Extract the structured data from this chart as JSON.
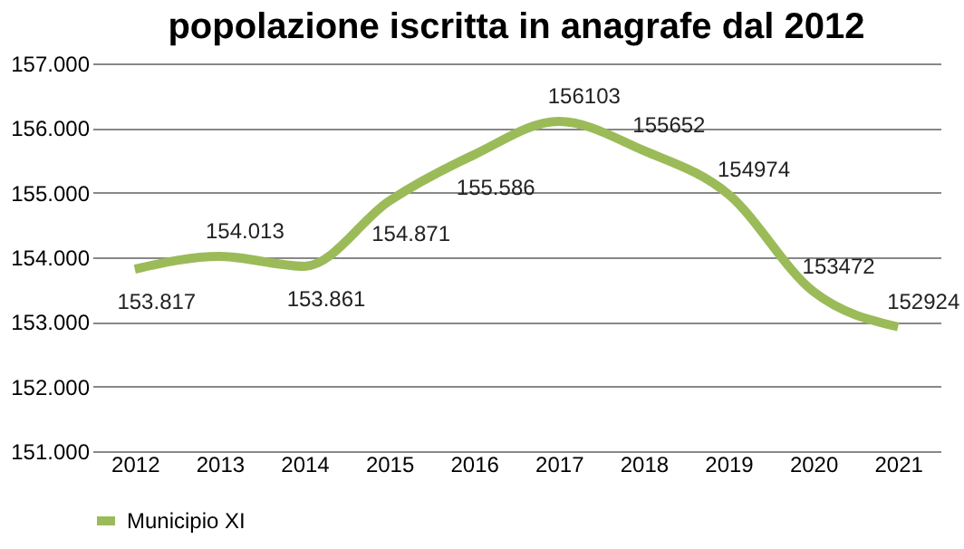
{
  "chart_data": {
    "type": "line",
    "title": "popolazione iscritta in anagrafe dal 2012",
    "categories": [
      "2012",
      "2013",
      "2014",
      "2015",
      "2016",
      "2017",
      "2018",
      "2019",
      "2020",
      "2021"
    ],
    "series": [
      {
        "name": "Municipio XI",
        "color": "#9bbb59",
        "values": [
          153817,
          154013,
          153861,
          154871,
          155586,
          156103,
          155652,
          154974,
          153472,
          152924
        ],
        "value_labels": [
          "153.817",
          "154.013",
          "153.861",
          "154.871",
          "155.586",
          "156103",
          "155652",
          "154974",
          "153472",
          "152924"
        ]
      }
    ],
    "ylim": [
      151000,
      157000
    ],
    "yticks": [
      {
        "value": 151000,
        "label": "151.000"
      },
      {
        "value": 152000,
        "label": "152.000"
      },
      {
        "value": 153000,
        "label": "153.000"
      },
      {
        "value": 154000,
        "label": "154.000"
      },
      {
        "value": 155000,
        "label": "155.000"
      },
      {
        "value": 156000,
        "label": "156.000"
      },
      {
        "value": 157000,
        "label": "157.000"
      }
    ],
    "grid": "y",
    "legend": "bottom",
    "marker": "none",
    "line_style": "solid"
  }
}
